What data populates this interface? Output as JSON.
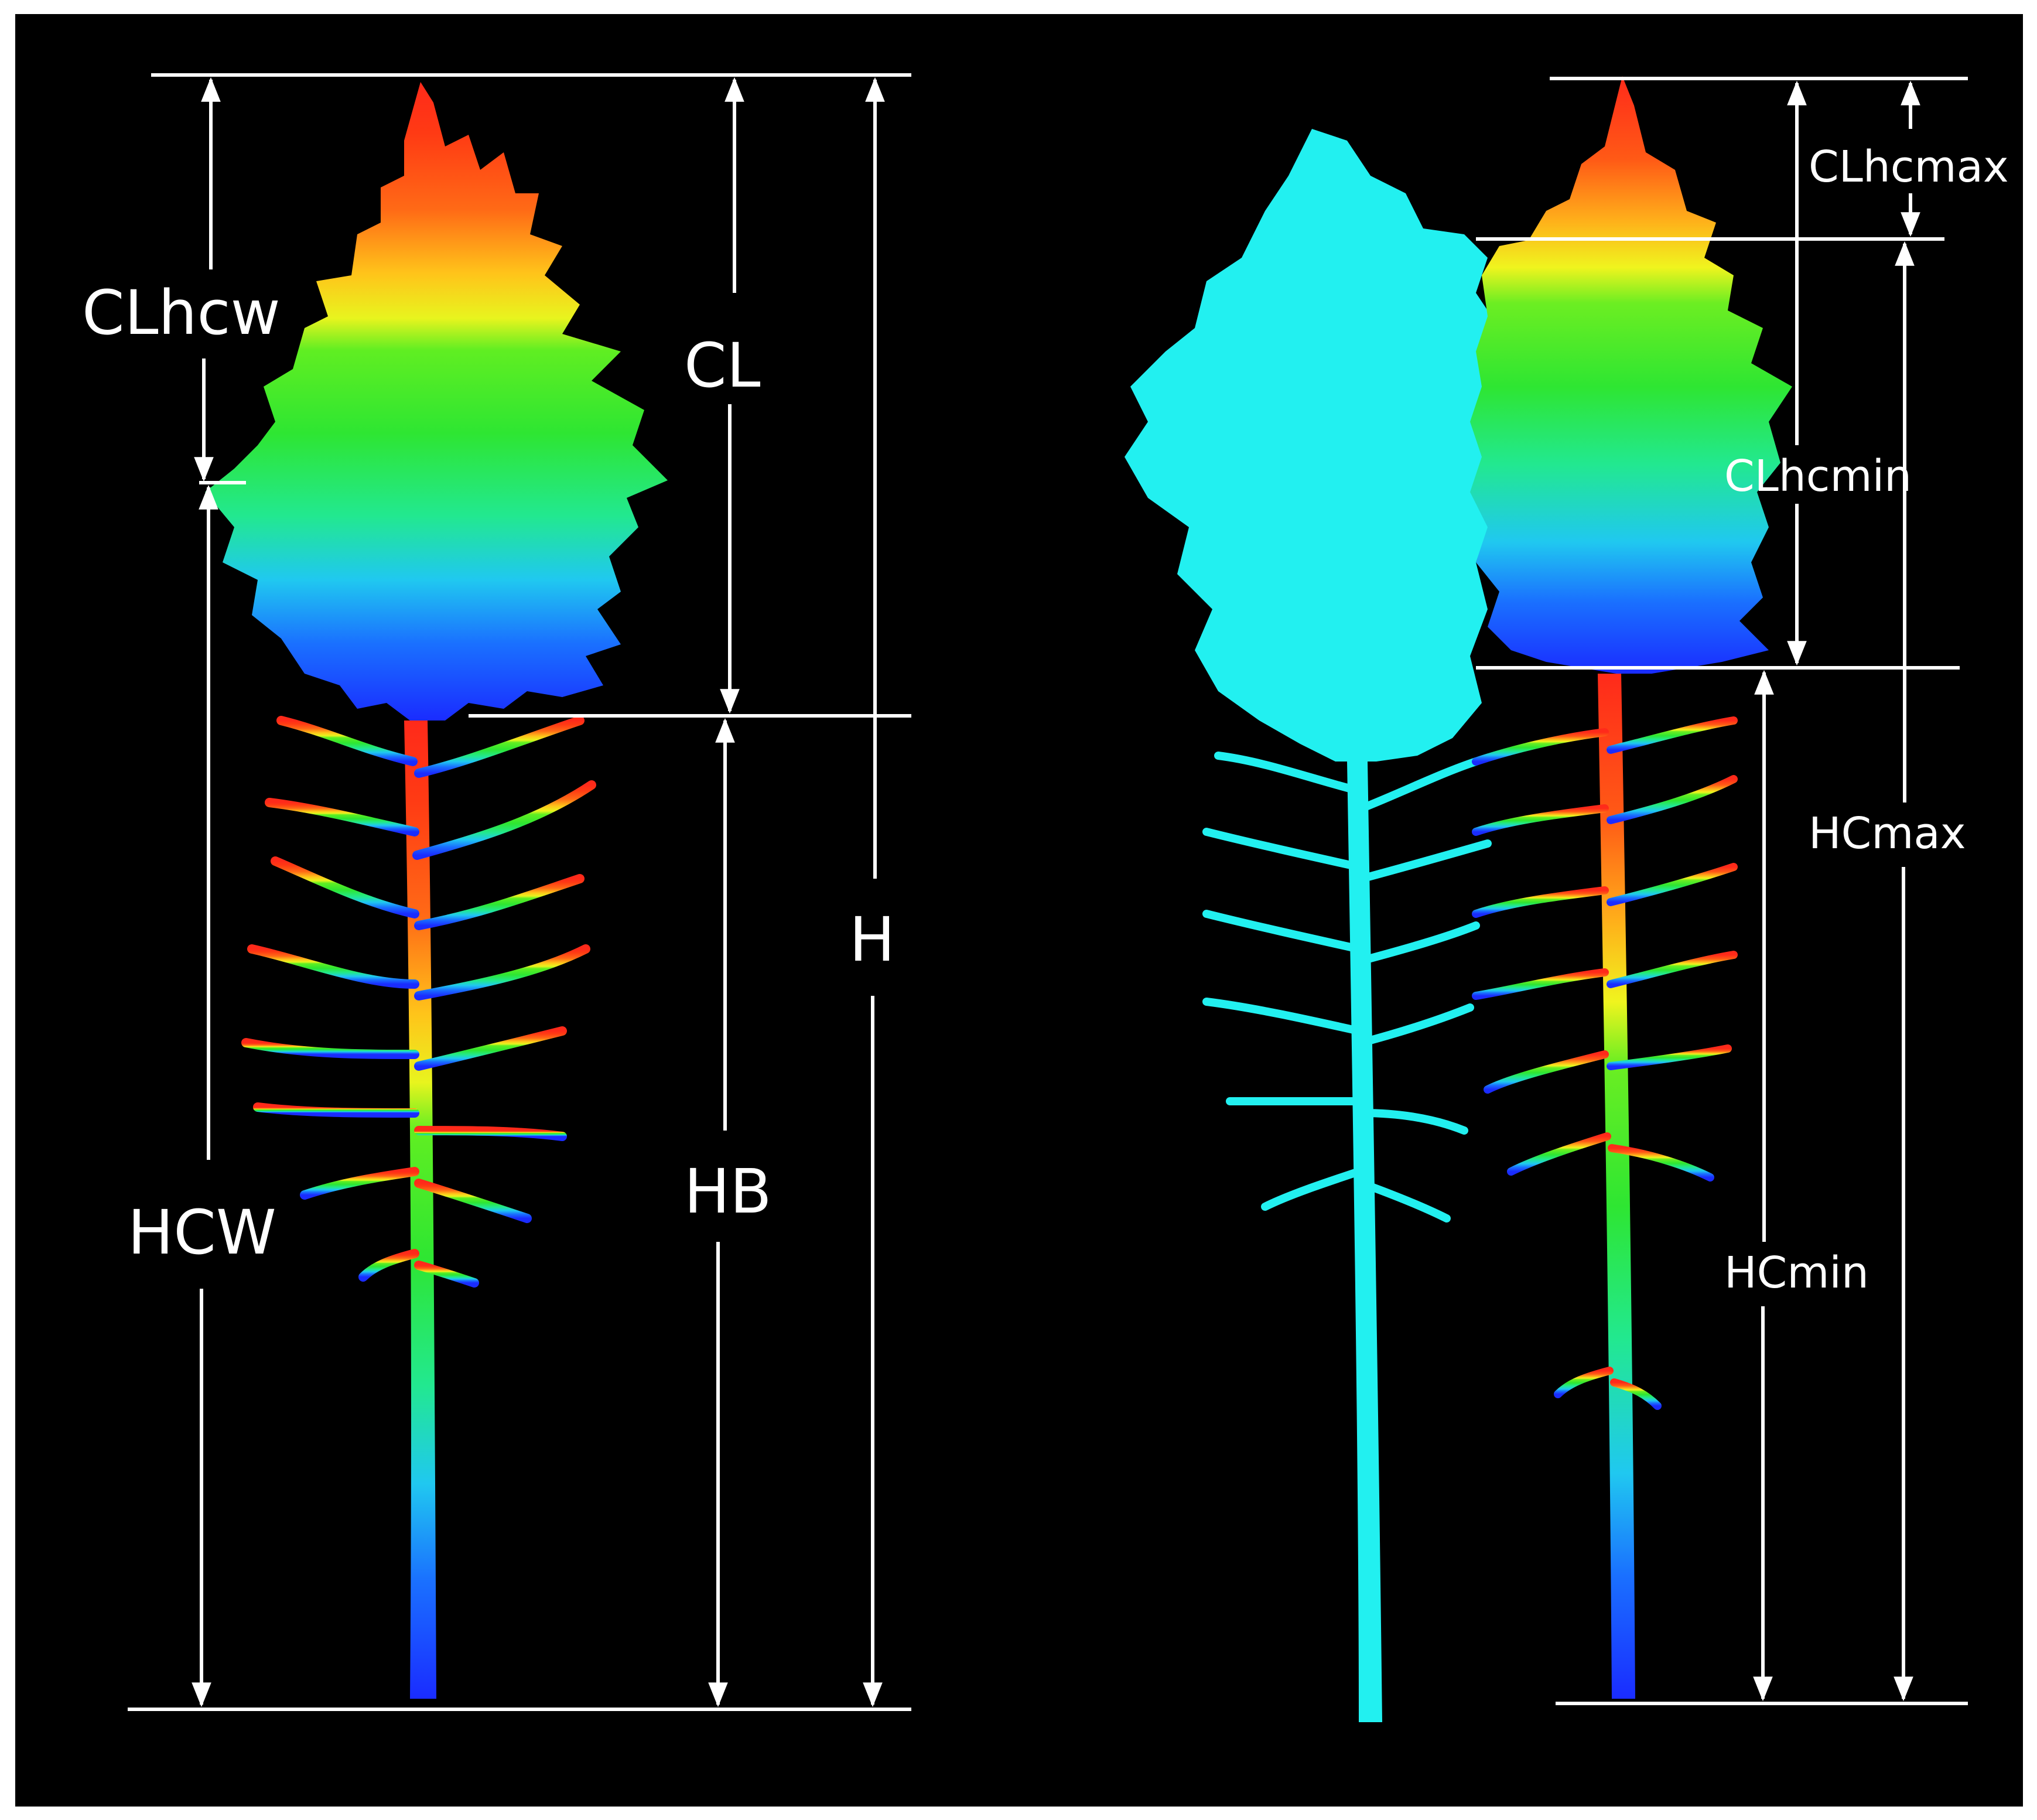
{
  "left_tree": {
    "labels": {
      "clhcw": "CLhcw",
      "cl": "CL",
      "h": "H",
      "hcw": "HCW",
      "hb": "HB"
    }
  },
  "right_trees": {
    "labels": {
      "clhcmax": "CLhcmax",
      "clhcmin": "CLhcmin",
      "hcmax": "HCmax",
      "hcmin": "HCmin"
    }
  },
  "colors": {
    "background": "#000000",
    "height_gradient": [
      "#1a3cff",
      "#1ea0ff",
      "#22e6e0",
      "#2ee632",
      "#8ef020",
      "#f2f21e",
      "#ff9a1a",
      "#ff4a14",
      "#ff2a1a"
    ],
    "neighbor_tree": "#22f0f0",
    "annotation": "#ffffff"
  }
}
